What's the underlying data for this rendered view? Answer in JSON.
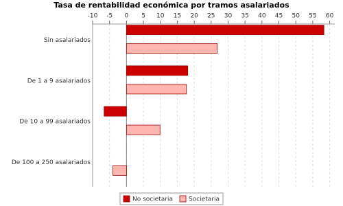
{
  "chart_data": {
    "type": "hbar",
    "title": "Tasa de rentabilidad económica por tramos asalariados",
    "categories": [
      "Sin asalariados",
      "De 1 a 9 asalariados",
      "De 10 a 99 asalariados",
      "De 100 a 250 asalariados"
    ],
    "series": [
      {
        "name": "No societaria",
        "color": "#cc0000",
        "values": [
          58.3,
          18.1,
          -6.6,
          null
        ]
      },
      {
        "name": "Societaria",
        "color": "#ffb6b0",
        "values": [
          26.8,
          17.7,
          9.9,
          -4.0
        ]
      }
    ],
    "xlim": [
      -10,
      61.5
    ],
    "xticks": [
      -10,
      -5,
      0,
      5,
      10,
      15,
      20,
      25,
      30,
      35,
      40,
      45,
      50,
      55,
      60
    ],
    "grid": true
  }
}
